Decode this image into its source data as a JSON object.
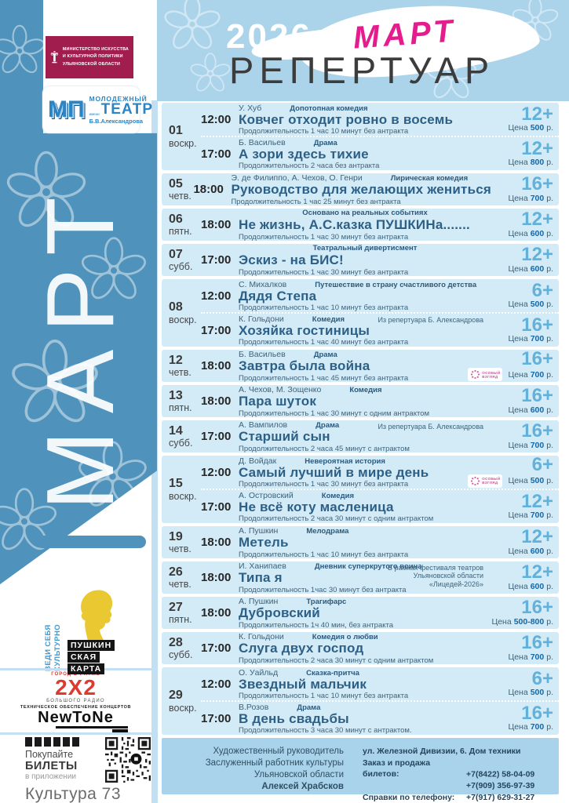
{
  "colors": {
    "pink": "#e61b8d",
    "sidebar-blue": "#4f92bb",
    "header-blue": "#abd4eb",
    "band-blue": "#d3eaf7",
    "footer-blue": "#a9d3ea",
    "strip-blue": "#c2e0f1",
    "title-blue": "#2d6086",
    "age-blue": "#62b1da",
    "price-blue": "#1668a6",
    "text-dark": "#3a3a3a",
    "meta-blue": "#3d6379",
    "ministry-crimson": "#a01d4e",
    "theater-blue": "#2b85c4",
    "pushkin-yellow": "#e9c832",
    "radio-red": "#e0392d"
  },
  "header": {
    "year": "2026",
    "month": "МАРТ",
    "title": "РЕПЕРТУАР"
  },
  "sidebar": {
    "month_vertical": "МАРТ",
    "ministry": {
      "lines": [
        "МИНИСТЕРСТВО ИСКУССТВА",
        "И КУЛЬТУРНОЙ ПОЛИТИКИ",
        "УЛЬЯНОВСКОЙ ОБЛАСТИ"
      ]
    },
    "theater": {
      "monogram": "МП",
      "line1": "МОЛОДЕЖНЫЙ",
      "line2": "ТЕАТР",
      "line3": "имени",
      "line4": "Б.В.Александрова"
    },
    "pushkin_card": {
      "slogan_line1": "ВЕДИ СЕБЯ",
      "slogan_line2": "КУЛЬТУРНО",
      "label_lines": [
        "ПУШКИН",
        "СКАЯ",
        "КАРТА"
      ]
    },
    "radio": {
      "top": "ГОРОД В РИТМЕ",
      "main": "2X2",
      "bottom": "БОЛЬШОГО РАДИО"
    },
    "newtone": {
      "top": "ТЕХНИЧЕСКОЕ ОБЕСПЕЧЕНИЕ КОНЦЕРТОВ",
      "main": "NewToNe"
    },
    "tickets": {
      "line1": "Покупайте",
      "line2": "БИЛЕТЫ",
      "line3": "в приложении",
      "app_name": "Культура 73"
    }
  },
  "labels": {
    "price_prefix": "Цена",
    "price_suffix": "р.",
    "osobiy_badge_line1": "особый",
    "osobiy_badge_line2": "взгляд"
  },
  "schedule": [
    {
      "date": "01",
      "weekday": "воскр.",
      "shows": [
        {
          "time": "12:00",
          "author": "У. Хуб",
          "genre": "Допотопная комедия",
          "note": "",
          "title": "Ковчег отходит ровно в восемь",
          "duration": "Продолжительность 1 час 10 минут без антракта",
          "age": "12+",
          "price": "500",
          "badge": false
        },
        {
          "time": "17:00",
          "author": "Б. Васильев",
          "genre": "Драма",
          "note": "",
          "title": "А зори здесь тихие",
          "duration": "Продолжительность 2 часа без антракта",
          "age": "12+",
          "price": "800",
          "badge": false
        }
      ]
    },
    {
      "date": "05",
      "weekday": "четв.",
      "shows": [
        {
          "time": "18:00",
          "author": "Э. де Филиппо, А. Чехов, О. Генри",
          "genre": "Лирическая комедия",
          "note": "",
          "title": "Руководство для желающих жениться",
          "duration": "Продолжительность 1 час 25 минут без антракта",
          "age": "16+",
          "price": "700",
          "badge": false
        }
      ]
    },
    {
      "date": "06",
      "weekday": "пятн.",
      "shows": [
        {
          "time": "18:00",
          "author": "",
          "genre": "Основано на реальных событиях",
          "note": "",
          "title": "Не жизнь, А.С.казка ПУШКИНа.......",
          "duration": "Продолжительность 1 час 30 минут без антракта",
          "age": "12+",
          "price": "600",
          "badge": false
        }
      ]
    },
    {
      "date": "07",
      "weekday": "субб.",
      "shows": [
        {
          "time": "17:00",
          "author": "",
          "genre": "Театральный дивертисмент",
          "note": "",
          "title": "Эскиз - на БИС!",
          "duration": "Продолжительность 1 час 30 минут без антракта",
          "age": "12+",
          "price": "600",
          "badge": false
        }
      ]
    },
    {
      "date": "08",
      "weekday": "воскр.",
      "shows": [
        {
          "time": "12:00",
          "author": "С. Михалков",
          "genre": "Путешествие в страну счастливого детства",
          "note": "",
          "title": "Дядя Степа",
          "duration": "Продолжительность 1 час 10 минут без антракта",
          "age": "6+",
          "price": "500",
          "badge": false
        },
        {
          "time": "17:00",
          "author": "К. Гольдони",
          "genre": "Комедия",
          "note": "Из репертуара Б. Александрова",
          "title": "Хозяйка гостиницы",
          "duration": "Продолжительность 1 час 40 минут без антракта",
          "age": "16+",
          "price": "700",
          "badge": false
        }
      ]
    },
    {
      "date": "12",
      "weekday": "четв.",
      "shows": [
        {
          "time": "18:00",
          "author": "Б. Васильев",
          "genre": "Драма",
          "note": "",
          "title": "Завтра была война",
          "duration": "Продолжительность 1 час 45 минут без антракта",
          "age": "16+",
          "price": "700",
          "badge": true
        }
      ]
    },
    {
      "date": "13",
      "weekday": "пятн.",
      "shows": [
        {
          "time": "18:00",
          "author": "А. Чехов, М. Зощенко",
          "genre": "Комедия",
          "note": "",
          "title": "Пара шуток",
          "duration": "Продолжительность 1 час 30 минут с одним антрактом",
          "age": "16+",
          "price": "600",
          "badge": false
        }
      ]
    },
    {
      "date": "14",
      "weekday": "субб.",
      "shows": [
        {
          "time": "17:00",
          "author": "А. Вампилов",
          "genre": "Драма",
          "note": "Из репертуара Б. Александрова",
          "title": "Старший сын",
          "duration": "Продолжительность 2 часа 45 минут с антрактом",
          "age": "16+",
          "price": "700",
          "badge": false
        }
      ]
    },
    {
      "date": "15",
      "weekday": "воскр.",
      "shows": [
        {
          "time": "12:00",
          "author": "Д. Войдак",
          "genre": "Невероятная история",
          "note": "",
          "title": "Самый лучший в мире день",
          "duration": "Продолжительность 1 час 30 минут без антракта",
          "age": "6+",
          "price": "500",
          "badge": true
        },
        {
          "time": "17:00",
          "author": "А. Островский",
          "genre": "Комедия",
          "note": "",
          "title": "Не всё коту масленица",
          "duration": "Продолжительность 2 часа 30 минут с одним антрактом",
          "age": "12+",
          "price": "700",
          "badge": false
        }
      ]
    },
    {
      "date": "19",
      "weekday": "четв.",
      "shows": [
        {
          "time": "18:00",
          "author": "А. Пушкин",
          "genre": "Мелодрама",
          "note": "",
          "title": "Метель",
          "duration": "Продолжительность 1 час 10 минут без антракта",
          "age": "12+",
          "price": "600",
          "badge": false
        }
      ]
    },
    {
      "date": "26",
      "weekday": "четв.",
      "shows": [
        {
          "time": "18:00",
          "author": "И. Ханипаев",
          "genre": "Дневник суперкрутого воина",
          "note": "В рамках фестиваля театров Ульяновской области «Лицедей-2026»",
          "title": "Типа я",
          "duration": "Продолжительность 1час 30 минут без антракта",
          "age": "12+",
          "price": "600",
          "badge": false
        }
      ]
    },
    {
      "date": "27",
      "weekday": "пятн.",
      "shows": [
        {
          "time": "18:00",
          "author": "А. Пушкин",
          "genre": "Трагифарс",
          "note": "",
          "title": "Дубровский",
          "duration": "Продолжительность 1ч 40 мин, без антракта",
          "age": "16+",
          "price": "500-800",
          "badge": false
        }
      ]
    },
    {
      "date": "28",
      "weekday": "субб.",
      "shows": [
        {
          "time": "17:00",
          "author": "К. Гольдони",
          "genre": "Комедия о любви",
          "note": "",
          "title": "Слуга двух господ",
          "duration": "Продолжительность 2 часа 30 минут с одним антрактом",
          "age": "16+",
          "price": "700",
          "badge": false
        }
      ]
    },
    {
      "date": "29",
      "weekday": "воскр.",
      "shows": [
        {
          "time": "12:00",
          "author": "О. Уайльд",
          "genre": "Сказка-притча",
          "note": "",
          "title": "Звездный мальчик",
          "duration": "Продолжительность 1 час 10 минут без антракта",
          "age": "6+",
          "price": "500",
          "badge": false
        },
        {
          "time": "17:00",
          "author": "В.Розов",
          "genre": "Драма",
          "note": "",
          "title": "В день свадьбы",
          "duration": "Продолжительность 3 часа 30 минут с антрактом.",
          "age": "16+",
          "price": "700",
          "badge": false
        }
      ]
    }
  ],
  "footer": {
    "left_lines": [
      "Художественный руководитель",
      "Заслуженный работник культуры",
      "Ульяновской области"
    ],
    "left_name": "Алексей Храбсков",
    "address": "ул. Железной Дивизии, 6. Дом техники",
    "tickets_label": "Заказ и продажа билетов:",
    "phone1": "+7(8422) 58-04-09",
    "phone2": "+7(909) 356-97-39",
    "info_label": "Справки по телефону:",
    "phone3": "+7(917) 629-31-27"
  }
}
